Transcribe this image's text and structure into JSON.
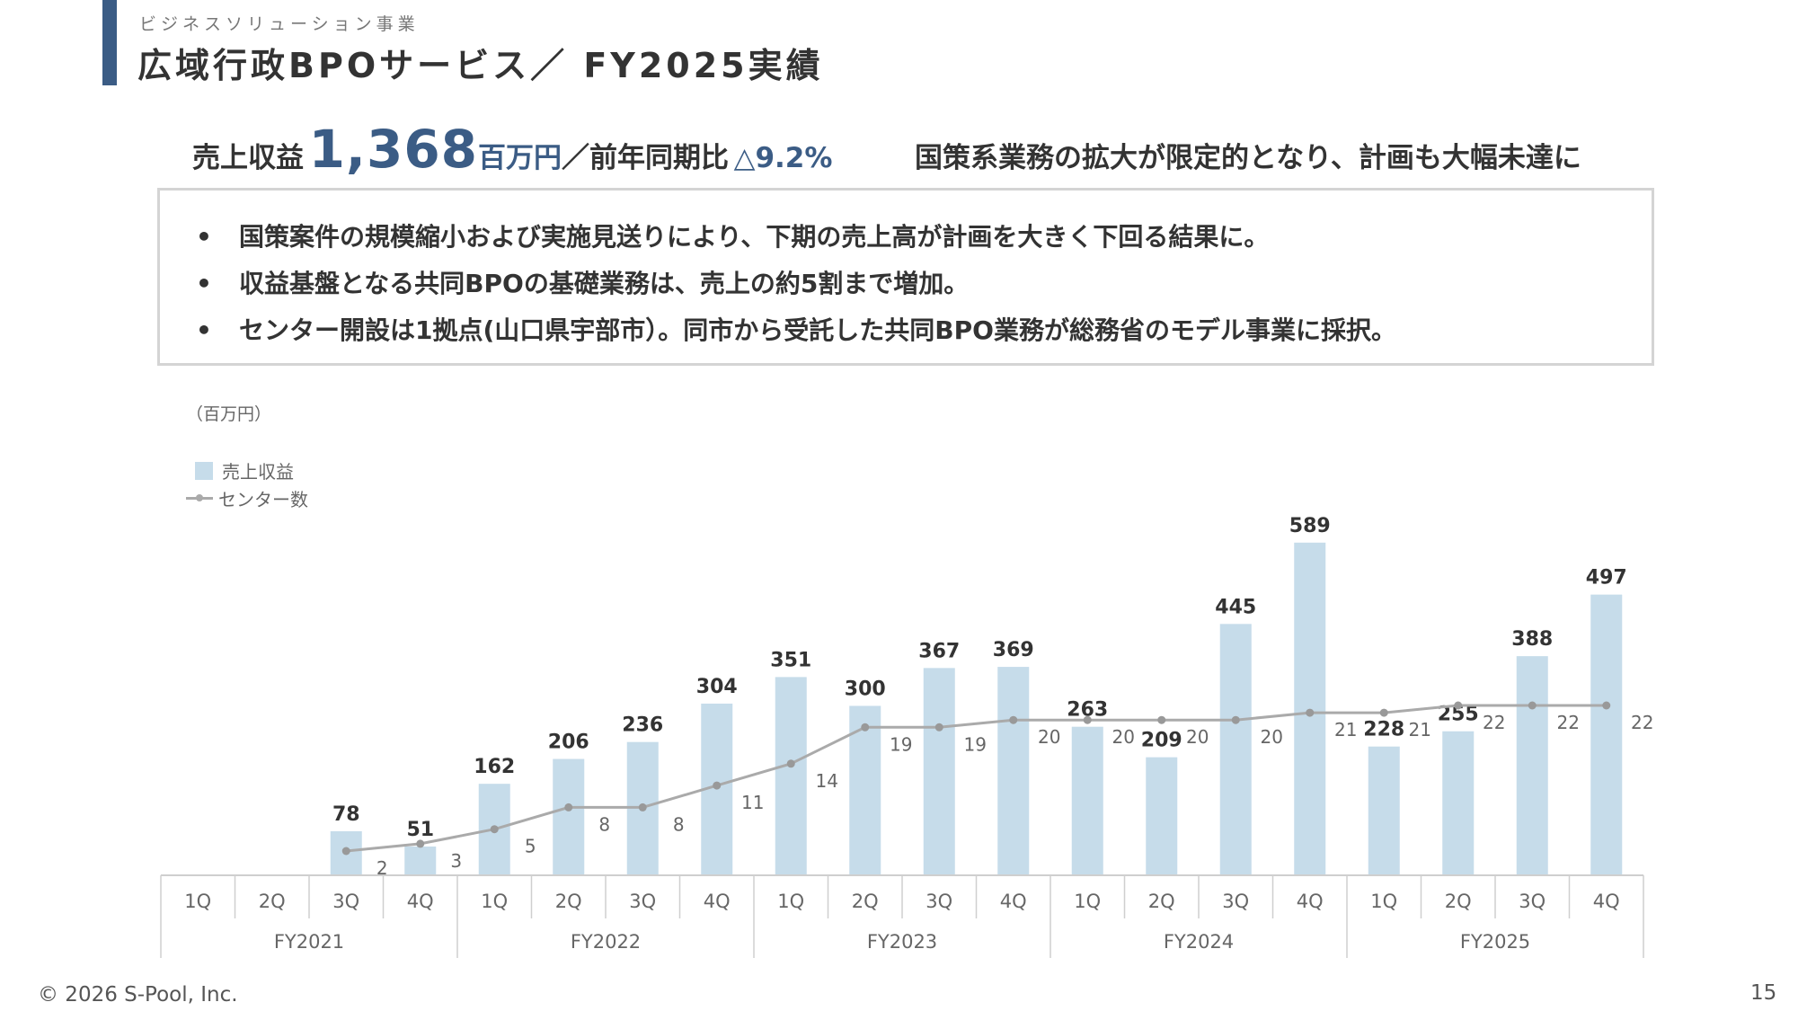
{
  "header": {
    "subtitle": "ビジネスソリューション事業",
    "title": "広域行政BPOサービス／ FY2025実績"
  },
  "summary": {
    "label": "売上収益",
    "value": "1,368",
    "unit": "百万円",
    "yoy_label": "／前年同期比",
    "yoy_value": "△9.2%",
    "headline": "国策系業務の拡大が限定的となり、計画も大幅未達に"
  },
  "bullets": [
    "国策案件の規模縮小および実施見送りにより、下期の売上高が計画を大きく下回る結果に。",
    "収益基盤となる共同BPOの基礎業務は、売上の約5割まで増加。",
    "センター開設は1拠点(山口県宇部市）。同市から受託した共同BPO業務が総務省のモデル事業に採択。"
  ],
  "bullet_symbol": "•",
  "chart_data": {
    "type": "bar",
    "unit_label": "（百万円）",
    "legend_position": "top-left",
    "quarters": [
      "1Q",
      "2Q",
      "3Q",
      "4Q",
      "1Q",
      "2Q",
      "3Q",
      "4Q",
      "1Q",
      "2Q",
      "3Q",
      "4Q",
      "1Q",
      "2Q",
      "3Q",
      "4Q",
      "1Q",
      "2Q",
      "3Q",
      "4Q"
    ],
    "years": [
      "FY2021",
      "FY2022",
      "FY2023",
      "FY2024",
      "FY2025"
    ],
    "series": [
      {
        "name": "売上収益",
        "type": "bar",
        "color": "#c6dcea",
        "values": [
          null,
          null,
          78,
          51,
          162,
          206,
          236,
          304,
          351,
          300,
          367,
          369,
          263,
          209,
          445,
          589,
          228,
          255,
          388,
          497
        ]
      },
      {
        "name": "センター数",
        "type": "line",
        "color": "#aaaaaa",
        "values": [
          null,
          null,
          2,
          3,
          5,
          8,
          8,
          11,
          14,
          19,
          19,
          20,
          20,
          20,
          20,
          21,
          21,
          22,
          22,
          22
        ]
      }
    ]
  },
  "footer": {
    "copyright": "© 2026 S-Pool, Inc.",
    "page": "15"
  }
}
